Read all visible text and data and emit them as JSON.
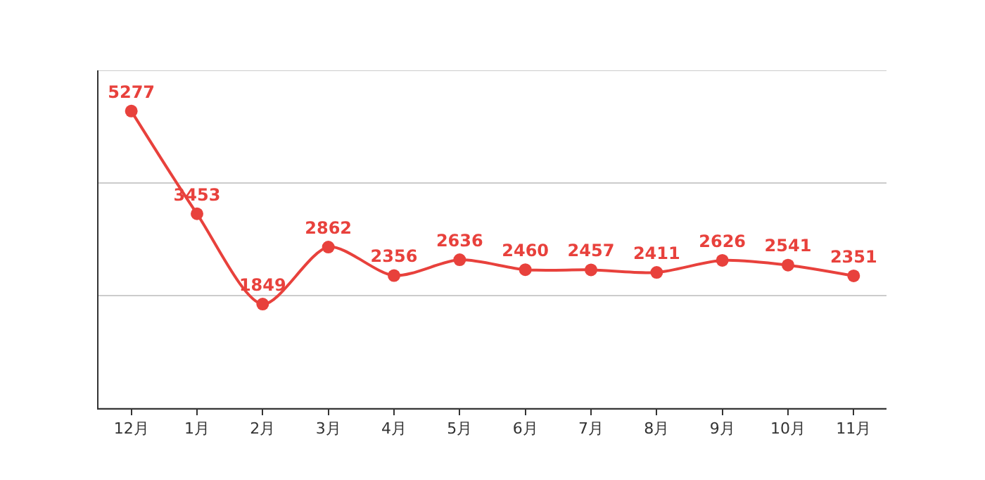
{
  "chart_data": {
    "type": "line",
    "categories": [
      "12月",
      "1月",
      "2月",
      "3月",
      "4月",
      "5月",
      "6月",
      "7月",
      "8月",
      "9月",
      "10月",
      "11月"
    ],
    "series": [
      {
        "color": "#e8413c",
        "values": [
          5277,
          3453,
          1849,
          2862,
          2356,
          2636,
          2460,
          2457,
          2411,
          2626,
          2541,
          2351
        ]
      }
    ],
    "ylim": [
      0,
      6000
    ],
    "yticks": [
      {
        "value": 0,
        "label": null
      },
      {
        "value": 2000,
        "label": null
      },
      {
        "value": 4000,
        "label": null
      },
      {
        "value": 6000,
        "label": null
      }
    ],
    "tick_labels": "x",
    "grid": "y",
    "marker": "circle",
    "line_style": "solid",
    "data_labels": true
  }
}
